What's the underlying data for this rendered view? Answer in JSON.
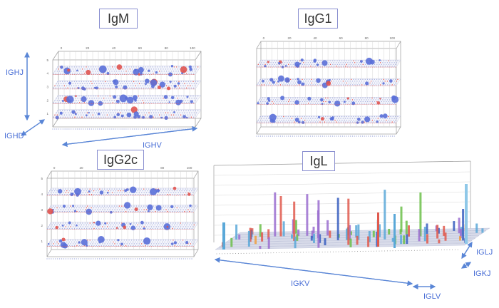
{
  "colors": {
    "bubble_small": "#5a6fd8",
    "bubble_red": "#e0534f",
    "frame": "#9a9a9a",
    "grid": "#d6d6d6",
    "arrow": "#5a86d6",
    "title_border": "#8a8fd0",
    "bar_series": [
      "#e05a4e",
      "#5aa8d8",
      "#6cc04a",
      "#9b6fd0",
      "#f0a040",
      "#3a5fbf"
    ]
  },
  "panels": {
    "igm": {
      "title": "IgM",
      "x_ticks": [
        "0",
        "20",
        "40",
        "60",
        "80",
        "100"
      ],
      "levels": [
        "5",
        "4",
        "3",
        "2",
        "1"
      ]
    },
    "igg1": {
      "title": "IgG1",
      "x_ticks": [
        "0",
        "20",
        "40",
        "60",
        "80",
        "100"
      ]
    },
    "igg2c": {
      "title": "IgG2c",
      "x_ticks": [
        "0",
        "20",
        "40",
        "60",
        "80",
        "100"
      ],
      "levels": [
        "5",
        "4",
        "3",
        "2",
        "1"
      ]
    },
    "igl": {
      "title": "IgL"
    }
  },
  "annotations": {
    "ighj": "IGHJ",
    "ighd": "IGHD",
    "ighv": "IGHV",
    "igkv": "IGKV",
    "iglv": "IGLV",
    "iglj": "IGLJ",
    "igkj": "IGKJ"
  },
  "chart_data": [
    {
      "type": "scatter",
      "title": "IgM",
      "x": "IGHV",
      "y": "IGHJ",
      "z": "IGHD",
      "xlim": [
        0,
        100
      ],
      "y_levels": [
        1,
        2,
        3,
        4,
        5
      ]
    },
    {
      "type": "scatter",
      "title": "IgG1",
      "xlim": [
        0,
        100
      ]
    },
    {
      "type": "scatter",
      "title": "IgG2c",
      "xlim": [
        0,
        100
      ],
      "y_levels": [
        1,
        2,
        3,
        4,
        5
      ]
    },
    {
      "type": "bar",
      "title": "IgL",
      "x": [
        "IGKV",
        "IGLV"
      ],
      "y": [
        "IGLJ",
        "IGKJ"
      ]
    }
  ]
}
